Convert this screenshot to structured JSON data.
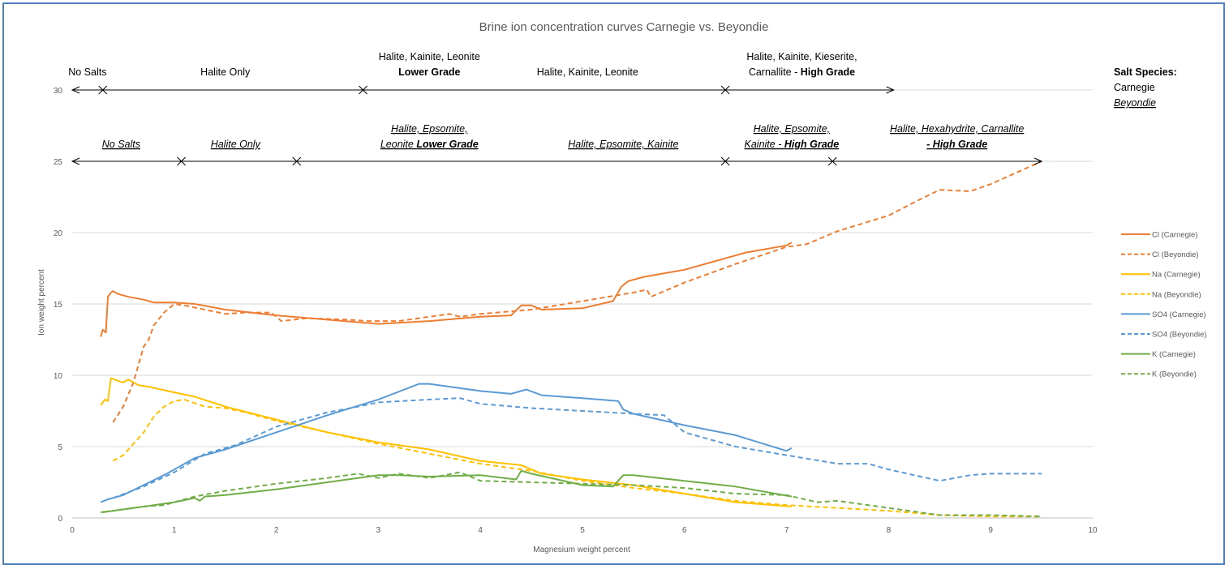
{
  "chart_data": {
    "type": "line",
    "title": "Brine ion concentration curves Carnegie vs. Beyondie",
    "xlabel": "Magnesium weight percent",
    "ylabel": "Ion weight percent",
    "xlim": [
      0,
      10
    ],
    "ylim": [
      0,
      30
    ],
    "xticks": [
      "0",
      "1",
      "2",
      "3",
      "4",
      "5",
      "6",
      "7",
      "8",
      "9",
      "10"
    ],
    "yticks": [
      "0",
      "5",
      "10",
      "15",
      "20",
      "25",
      "30"
    ],
    "grid": "horizontal",
    "legend_position": "right",
    "series": [
      {
        "name": "Cl (Carnegie)",
        "color": "#ed7d31",
        "dash": false,
        "x": [
          0.28,
          0.3,
          0.33,
          0.35,
          0.38,
          0.4,
          0.45,
          0.55,
          0.7,
          0.8,
          1.0,
          1.2,
          1.5,
          2.0,
          2.5,
          3.0,
          3.5,
          4.0,
          4.3,
          4.4,
          4.5,
          4.6,
          5.0,
          5.3,
          5.38,
          5.45,
          5.6,
          6.0,
          6.4,
          6.6,
          7.0,
          7.05
        ],
        "y": [
          12.7,
          13.2,
          13.0,
          15.5,
          15.8,
          15.9,
          15.7,
          15.5,
          15.3,
          15.1,
          15.1,
          15.0,
          14.6,
          14.2,
          13.9,
          13.6,
          13.8,
          14.1,
          14.2,
          14.9,
          14.9,
          14.6,
          14.7,
          15.2,
          16.2,
          16.6,
          16.9,
          17.4,
          18.2,
          18.6,
          19.1,
          19.3
        ]
      },
      {
        "name": "Cl (Beyondie)",
        "color": "#ed7d31",
        "dash": true,
        "x": [
          0.4,
          0.5,
          0.6,
          0.7,
          0.75,
          0.8,
          0.9,
          1.0,
          1.1,
          1.3,
          1.5,
          1.7,
          1.95,
          2.05,
          2.3,
          2.7,
          2.9,
          3.2,
          3.5,
          3.7,
          3.8,
          4.0,
          4.5,
          5.0,
          5.5,
          5.63,
          5.67,
          6.0,
          6.5,
          7.0,
          7.2,
          7.5,
          8.0,
          8.3,
          8.5,
          8.8,
          9.0,
          9.5
        ],
        "y": [
          6.7,
          7.8,
          9.5,
          12.0,
          12.5,
          13.5,
          14.4,
          15.0,
          14.9,
          14.6,
          14.3,
          14.4,
          14.4,
          13.8,
          14.0,
          13.9,
          13.8,
          13.8,
          14.1,
          14.3,
          14.1,
          14.3,
          14.6,
          15.2,
          15.8,
          16.0,
          15.5,
          16.5,
          17.8,
          19.0,
          19.2,
          20.1,
          21.2,
          22.3,
          23.0,
          22.9,
          23.4,
          25.0
        ]
      },
      {
        "name": "Na (Carnegie)",
        "color": "#ffc000",
        "dash": false,
        "x": [
          0.28,
          0.32,
          0.35,
          0.38,
          0.45,
          0.5,
          0.55,
          0.65,
          0.75,
          1.0,
          1.2,
          1.5,
          2.0,
          2.5,
          3.0,
          3.5,
          4.0,
          4.4,
          4.6,
          5.0,
          5.5,
          6.0,
          6.5,
          7.05
        ],
        "y": [
          7.9,
          8.3,
          8.2,
          9.8,
          9.6,
          9.5,
          9.7,
          9.3,
          9.2,
          8.8,
          8.5,
          7.8,
          6.9,
          6.0,
          5.3,
          4.8,
          4.0,
          3.7,
          3.1,
          2.7,
          2.3,
          1.7,
          1.1,
          0.8
        ]
      },
      {
        "name": "Na (Beyondie)",
        "color": "#ffc000",
        "dash": true,
        "x": [
          0.4,
          0.5,
          0.6,
          0.7,
          0.8,
          0.9,
          1.0,
          1.1,
          1.3,
          1.5,
          1.7,
          2.0,
          2.5,
          3.0,
          3.5,
          4.0,
          4.5,
          5.0,
          5.5,
          6.0,
          6.5,
          7.0,
          7.5,
          8.0,
          8.5,
          9.0,
          9.5
        ],
        "y": [
          4.0,
          4.4,
          5.2,
          6.0,
          7.1,
          7.8,
          8.2,
          8.3,
          7.8,
          7.7,
          7.4,
          6.8,
          6.0,
          5.2,
          4.5,
          3.8,
          3.3,
          2.6,
          2.1,
          1.7,
          1.2,
          0.9,
          0.7,
          0.5,
          0.2,
          0.1,
          0.1
        ]
      },
      {
        "name": "SO4 (Carnegie)",
        "color": "#5b9bd5",
        "dash": false,
        "x": [
          0.28,
          0.35,
          0.5,
          0.7,
          0.9,
          1.0,
          1.2,
          1.5,
          2.0,
          2.5,
          3.0,
          3.4,
          3.5,
          4.0,
          4.3,
          4.45,
          4.6,
          5.0,
          5.35,
          5.4,
          5.5,
          6.0,
          6.5,
          7.0,
          7.05
        ],
        "y": [
          1.1,
          1.3,
          1.6,
          2.3,
          3.0,
          3.4,
          4.2,
          4.8,
          6.0,
          7.2,
          8.3,
          9.4,
          9.4,
          8.9,
          8.7,
          9.0,
          8.6,
          8.4,
          8.2,
          7.6,
          7.3,
          6.5,
          5.8,
          4.7,
          4.9
        ]
      },
      {
        "name": "SO4 (Beyondie)",
        "color": "#5b9bd5",
        "dash": true,
        "x": [
          0.4,
          0.7,
          1.0,
          1.3,
          1.6,
          2.0,
          2.5,
          2.8,
          3.0,
          3.5,
          3.8,
          4.0,
          4.5,
          5.0,
          5.5,
          5.8,
          6.0,
          6.5,
          7.0,
          7.5,
          7.8,
          8.0,
          8.5,
          8.8,
          9.0,
          9.5
        ],
        "y": [
          1.4,
          2.2,
          3.2,
          4.5,
          5.1,
          6.4,
          7.4,
          7.8,
          8.1,
          8.3,
          8.4,
          8.0,
          7.7,
          7.5,
          7.3,
          7.2,
          6.0,
          5.0,
          4.4,
          3.8,
          3.8,
          3.4,
          2.6,
          3.0,
          3.1,
          3.1
        ]
      },
      {
        "name": "K (Carnegie)",
        "color": "#70ad47",
        "dash": false,
        "x": [
          0.28,
          0.4,
          0.6,
          0.8,
          1.0,
          1.2,
          1.25,
          1.3,
          1.5,
          2.0,
          2.5,
          3.0,
          3.2,
          3.5,
          4.0,
          4.35,
          4.4,
          4.5,
          5.0,
          5.3,
          5.4,
          5.5,
          6.0,
          6.5,
          7.05
        ],
        "y": [
          0.4,
          0.5,
          0.7,
          0.9,
          1.1,
          1.4,
          1.2,
          1.5,
          1.6,
          2.0,
          2.5,
          3.0,
          3.0,
          2.9,
          3.0,
          2.7,
          3.3,
          3.1,
          2.3,
          2.2,
          3.0,
          3.0,
          2.6,
          2.2,
          1.5
        ]
      },
      {
        "name": "K (Beyondie)",
        "color": "#70ad47",
        "dash": true,
        "x": [
          0.3,
          0.5,
          0.7,
          0.9,
          1.0,
          1.2,
          1.5,
          2.0,
          2.5,
          2.8,
          3.0,
          3.2,
          3.5,
          3.8,
          4.0,
          4.5,
          5.0,
          5.5,
          6.0,
          6.5,
          7.0,
          7.3,
          7.5,
          8.0,
          8.5,
          9.0,
          9.5
        ],
        "y": [
          0.4,
          0.6,
          0.8,
          0.9,
          1.1,
          1.5,
          1.9,
          2.4,
          2.8,
          3.1,
          2.8,
          3.1,
          2.8,
          3.2,
          2.6,
          2.5,
          2.4,
          2.3,
          2.1,
          1.7,
          1.6,
          1.1,
          1.2,
          0.7,
          0.2,
          0.2,
          0.1
        ]
      }
    ],
    "annotations": {
      "carnegie_y": 30,
      "beyondie_y": 25,
      "carnegie_arrow_span": [
        0,
        8.05
      ],
      "beyondie_arrow_span": [
        0,
        9.5
      ],
      "carnegie_marks": [
        0.3,
        2.85,
        6.4
      ],
      "beyondie_marks": [
        1.07,
        2.2,
        6.4,
        7.45
      ],
      "carnegie_regions": [
        {
          "lines": [
            [
              "No Salts"
            ]
          ],
          "center": 0.15
        },
        {
          "lines": [
            [
              "Halite Only"
            ]
          ],
          "center": 1.5
        },
        {
          "lines": [
            [
              "Halite, Kainite, Leonite"
            ],
            [
              "Lower Grade"
            ]
          ],
          "center": 3.5,
          "bold_line": 1
        },
        {
          "lines": [
            [
              "Halite, Kainite, Leonite"
            ]
          ],
          "center": 5.05
        },
        {
          "lines": [
            [
              "Halite, Kainite, Kieserite,"
            ],
            [
              "Carnallite - ",
              "High Grade"
            ]
          ],
          "center": 7.15
        }
      ],
      "beyondie_regions": [
        {
          "lines": [
            [
              "No Salts"
            ]
          ],
          "center": 0.48
        },
        {
          "lines": [
            [
              "Halite Only"
            ]
          ],
          "center": 1.6
        },
        {
          "lines": [
            [
              "Halite, Epsomite,"
            ],
            [
              "Leonite ",
              "Lower Grade"
            ]
          ],
          "center": 3.5
        },
        {
          "lines": [
            [
              "Halite, Epsomite, Kainite"
            ]
          ],
          "center": 5.4
        },
        {
          "lines": [
            [
              "Halite, Epsomite,"
            ],
            [
              "Kainite - ",
              "High Grade"
            ]
          ],
          "center": 7.05
        },
        {
          "lines": [
            [
              "Halite, Hexahydrite, Carnallite"
            ],
            [
              "- High Grade"
            ]
          ],
          "center": 8.67,
          "bold_line": 1
        }
      ]
    },
    "salt_species": {
      "heading": "Salt Species:",
      "carnegie": "Carnegie",
      "beyondie": "Beyondie"
    }
  }
}
